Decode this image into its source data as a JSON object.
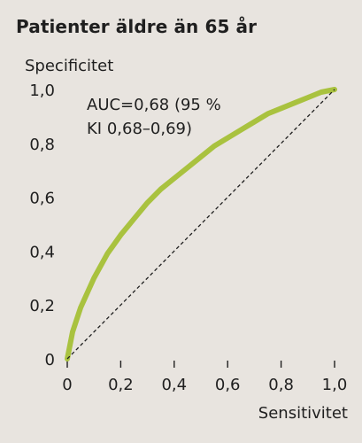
{
  "title": "Patienter äldre än 65 år",
  "chart_data": {
    "type": "line",
    "ylabel": "Specificitet",
    "xlabel": "Sensitivitet",
    "xlim": [
      0,
      1.0
    ],
    "ylim": [
      0,
      1.0
    ],
    "xticks": [
      "0",
      "0,2",
      "0,4",
      "0,6",
      "0,8",
      "1,0"
    ],
    "yticks": [
      "0",
      "0,2",
      "0,4",
      "0,6",
      "0,8",
      "1,0"
    ],
    "annotation": [
      "AUC=0,68 (95 %",
      "KI 0,68–0,69)"
    ],
    "series": [
      {
        "style": "solid",
        "color": "#a9c23f",
        "x": [
          0,
          0.02,
          0.05,
          0.1,
          0.15,
          0.2,
          0.25,
          0.3,
          0.35,
          0.4,
          0.45,
          0.5,
          0.55,
          0.6,
          0.65,
          0.7,
          0.75,
          0.8,
          0.85,
          0.9,
          0.95,
          1.0
        ],
        "y": [
          0,
          0.1,
          0.19,
          0.3,
          0.39,
          0.46,
          0.52,
          0.58,
          0.63,
          0.67,
          0.71,
          0.75,
          0.79,
          0.82,
          0.85,
          0.88,
          0.91,
          0.93,
          0.95,
          0.97,
          0.99,
          1.0
        ]
      },
      {
        "style": "dashed",
        "color": "#1f1f1f",
        "x": [
          0,
          1.0
        ],
        "y": [
          0,
          1.0
        ]
      }
    ],
    "grid": false
  }
}
